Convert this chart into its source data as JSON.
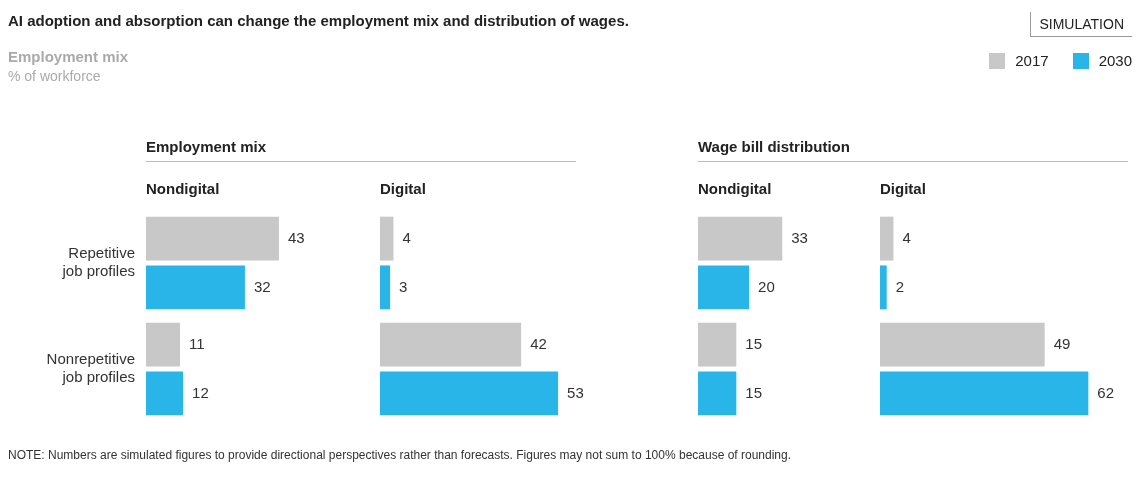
{
  "chart_data": [
    {
      "type": "bar",
      "orientation": "horizontal",
      "title": "AI adoption and absorption can change the employment mix and distribution of wages.",
      "subtitle": "Employment mix",
      "xlabel": "Nondigital",
      "categories": [
        "Repetitive job profiles",
        "Nonrepetitive job profiles"
      ],
      "series": [
        {
          "name": "2017",
          "color": "#c8c8c8",
          "values": [
            43,
            11
          ]
        },
        {
          "name": "2030",
          "color": "#29b5e8",
          "values": [
            32,
            12
          ]
        }
      ],
      "data_labels": true,
      "legend": "top right",
      "tick_labels": "y",
      "annotations": [
        "% of workforce",
        "SIMULATION",
        "Employment mix",
        "NOTE: Numbers are simulated figures to provide directional perspectives rather than forecasts. Figures may not sum to 100% because of rounding."
      ]
    },
    {
      "type": "bar",
      "orientation": "horizontal",
      "xlabel": "Digital",
      "categories": [
        null,
        null
      ],
      "series": [
        {
          "name": "2017",
          "color": "#c8c8c8",
          "values": [
            4,
            42
          ]
        },
        {
          "name": "2030",
          "color": "#29b5e8",
          "values": [
            3,
            53
          ]
        }
      ],
      "data_labels": true,
      "tick_labels": false
    },
    {
      "type": "bar",
      "orientation": "horizontal",
      "xlabel": "Nondigital",
      "categories": [
        null,
        null
      ],
      "series": [
        {
          "name": "2017",
          "color": "#c8c8c8",
          "values": [
            33,
            15
          ]
        },
        {
          "name": "2030",
          "color": "#29b5e8",
          "values": [
            20,
            15
          ]
        }
      ],
      "data_labels": true,
      "tick_labels": false,
      "annotations": [
        "Wage bill distribution"
      ]
    },
    {
      "type": "bar",
      "orientation": "horizontal",
      "xlabel": "Digital",
      "categories": [
        null,
        null
      ],
      "series": [
        {
          "name": "2017",
          "color": "#c8c8c8",
          "values": [
            4,
            49
          ]
        },
        {
          "name": "2030",
          "color": "#29b5e8",
          "values": [
            2,
            62
          ]
        }
      ],
      "data_labels": true,
      "tick_labels": false
    }
  ]
}
